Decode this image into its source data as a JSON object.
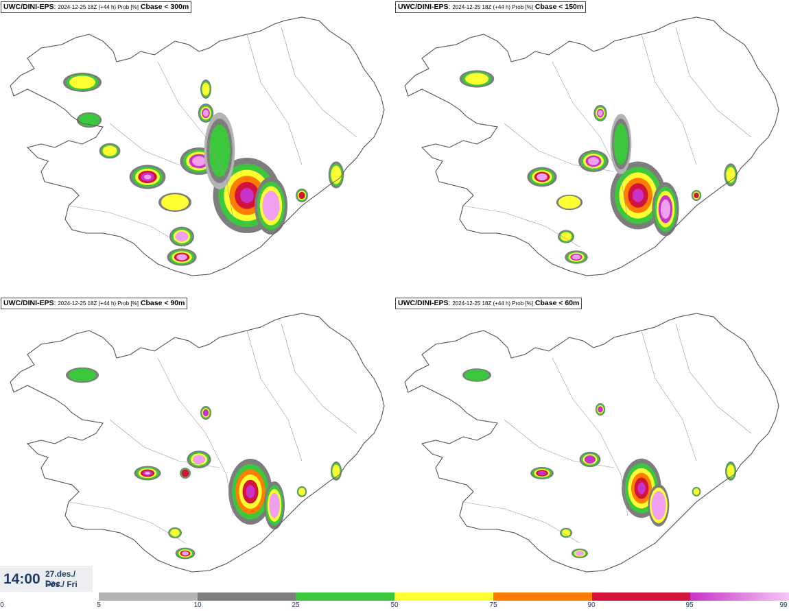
{
  "panels": [
    {
      "model": "UWC/DINI-EPS",
      "run": "2024-12-25 18Z (+44 h) Prob [%]",
      "param": "Cbase < 300m"
    },
    {
      "model": "UWC/DINI-EPS",
      "run": "2024-12-25 18Z (+44 h) Prob [%]",
      "param": "Cbase < 150m"
    },
    {
      "model": "UWC/DINI-EPS",
      "run": "2024-12-25 18Z (+44 h) Prob [%]",
      "param": "Cbase < 90m"
    },
    {
      "model": "UWC/DINI-EPS",
      "run": "2024-12-25 18Z (+44 h) Prob [%]",
      "param": "Cbase < 60m"
    }
  ],
  "valid_time": {
    "clock": "14:00",
    "date_line1": "27.des./ Dec",
    "date_line2": "Fös./ Fri"
  },
  "colorbar": {
    "ticks": [
      "0",
      "5",
      "10",
      "25",
      "50",
      "75",
      "90",
      "95",
      "99"
    ],
    "colors": [
      "#b4b4b4",
      "#7d7d7d",
      "#3cc83c",
      "#ffff32",
      "#ff7d00",
      "#d2143c",
      "#c832c8"
    ],
    "last_gradient_end": "#f5c8f5"
  },
  "map_colors": {
    "lightgrey": "#b4b4b4",
    "grey": "#7d7d7d",
    "green": "#3cc83c",
    "yellow": "#ffff32",
    "orange": "#ff7d00",
    "red": "#d2143c",
    "magenta": "#c832c8",
    "pink": "#f0a0f0"
  }
}
